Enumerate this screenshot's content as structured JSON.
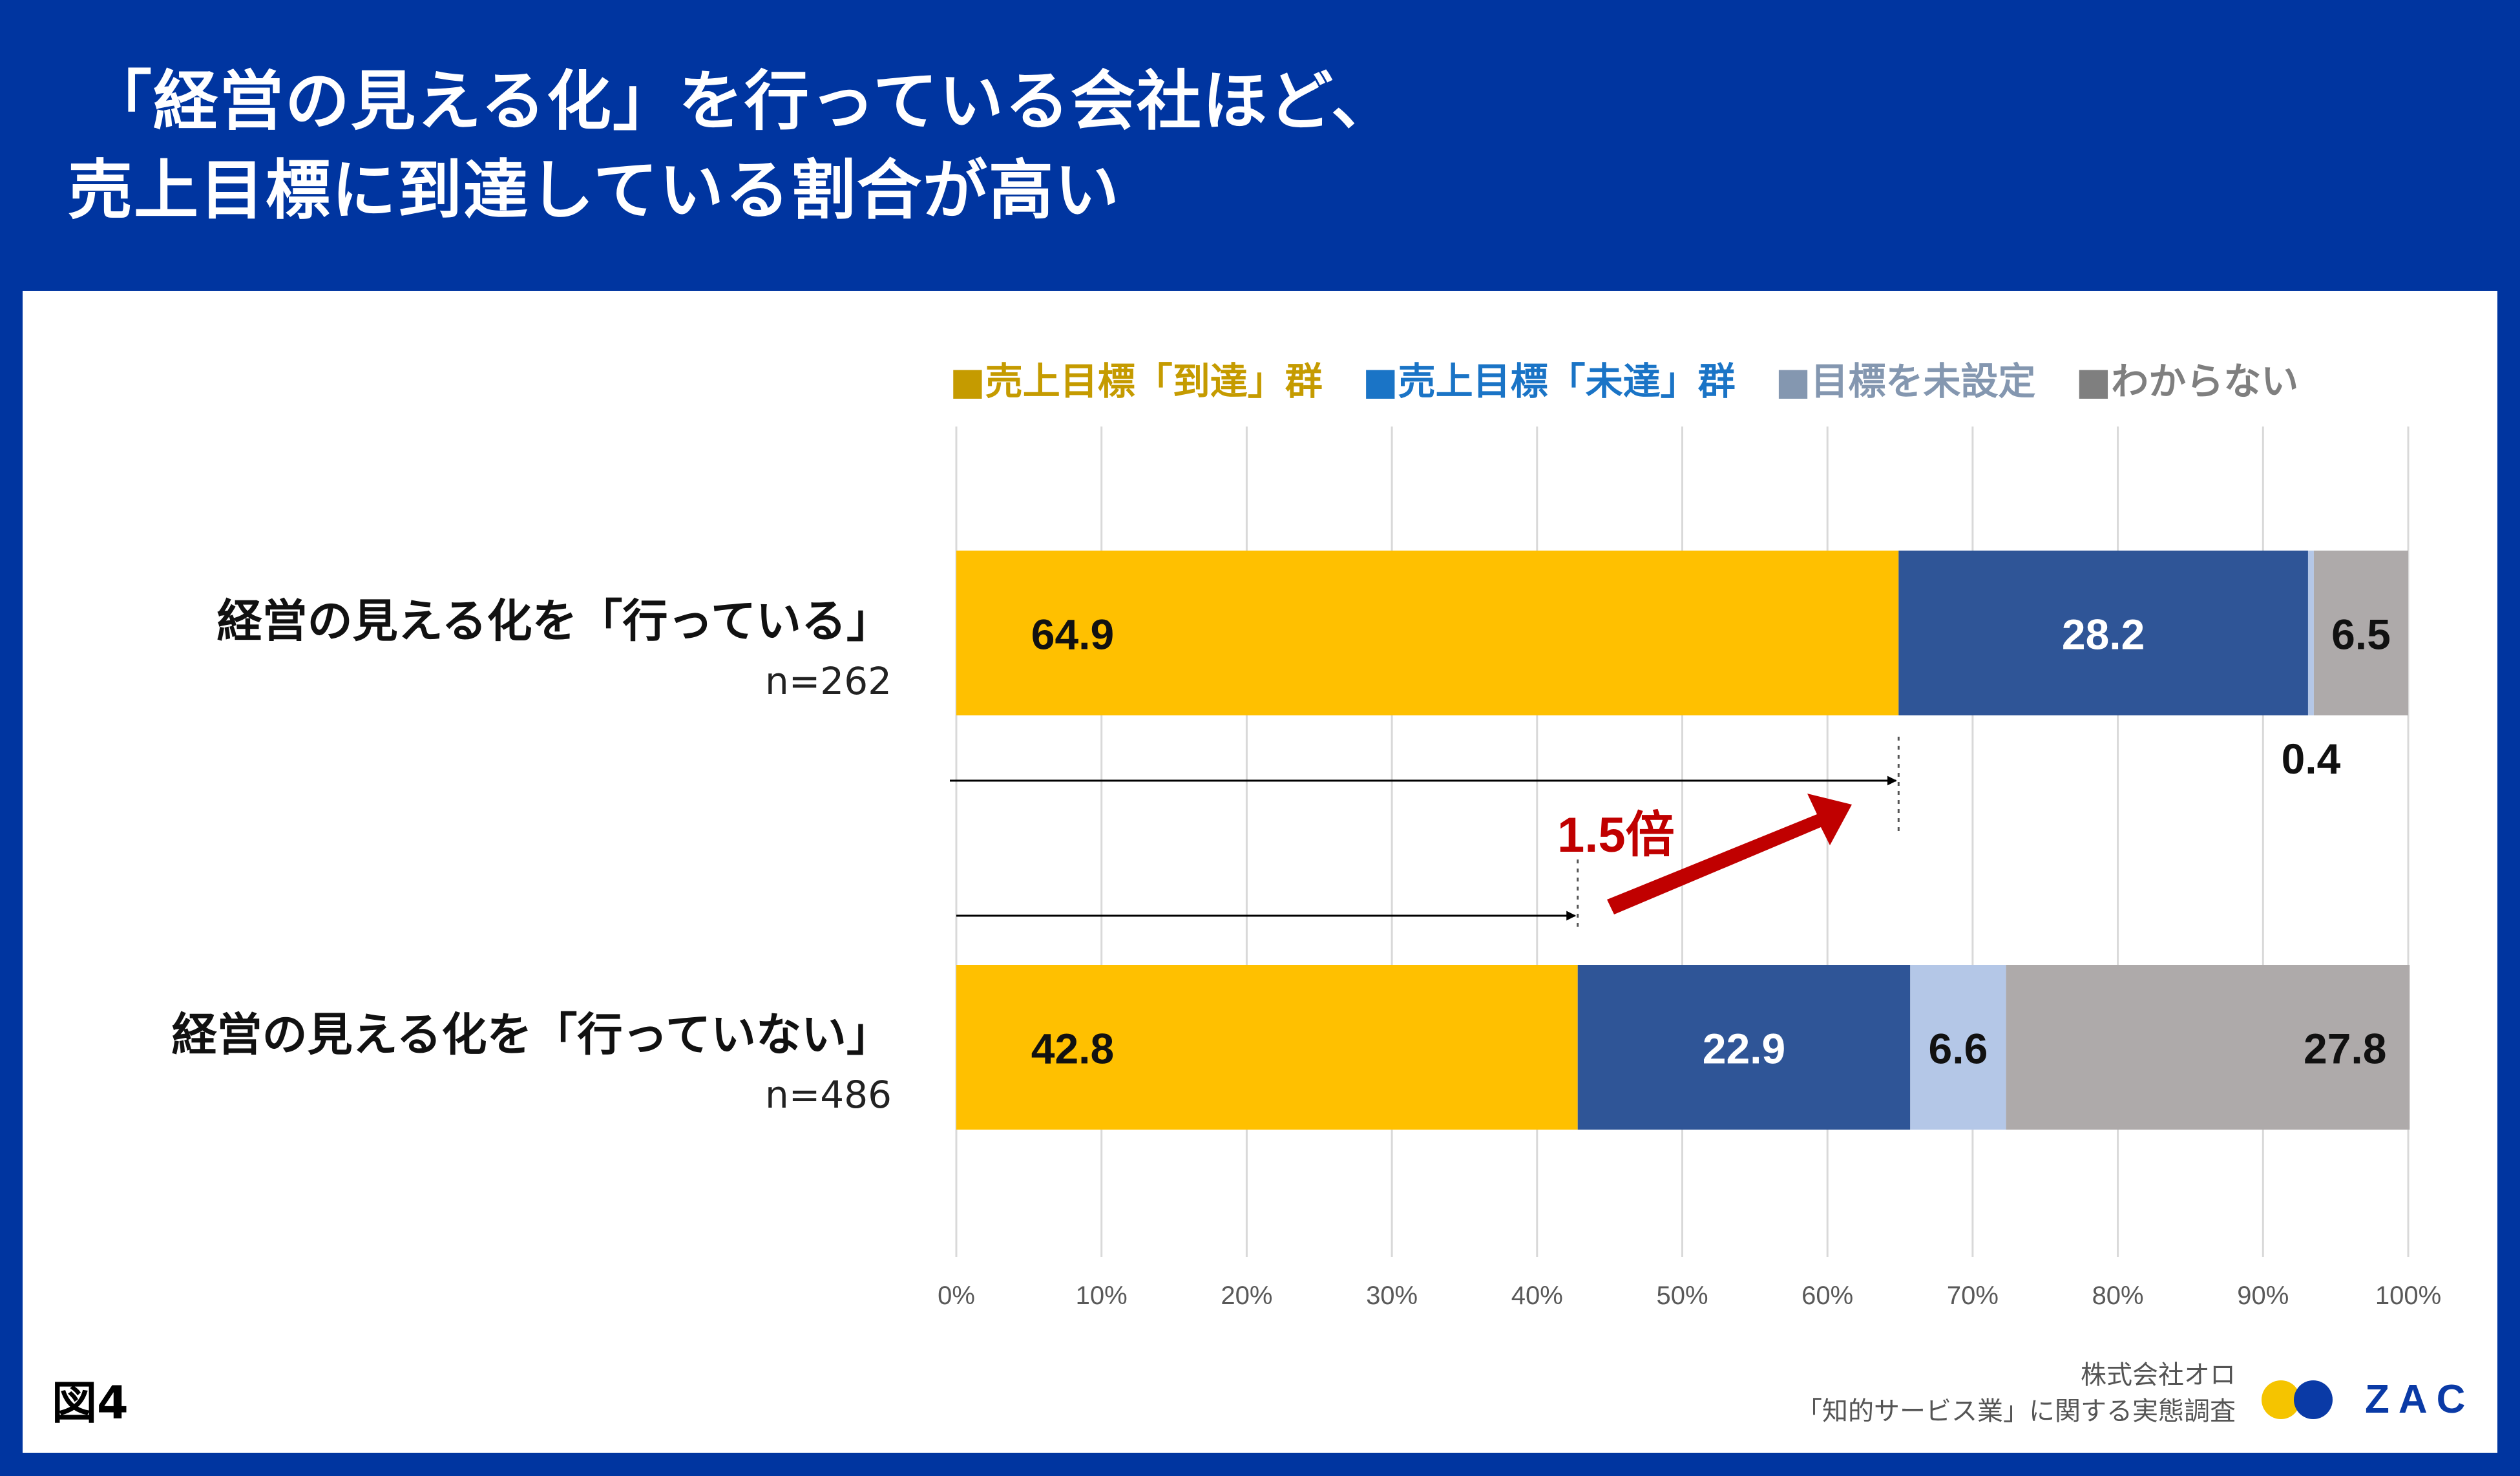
{
  "header": {
    "title_line1": "「経営の見える化」を行っている会社ほど、",
    "title_line2": "売上目標に到達している割合が高い"
  },
  "figure_label": "図4",
  "source": {
    "line1": "株式会社オロ",
    "line2": "「知的サービス業」に関する実態調査"
  },
  "logo": {
    "text": "ZAC"
  },
  "colors": {
    "background": "#0035a0",
    "reached": "#ffc000",
    "not_reached": "#2f5597",
    "not_set": "#b4c7e7",
    "unknown": "#aeaaaa",
    "emphasis": "#c00000"
  },
  "chart_data": {
    "type": "bar",
    "orientation": "horizontal-stacked",
    "xlim": [
      0,
      100
    ],
    "x_ticks": [
      "0%",
      "10%",
      "20%",
      "30%",
      "40%",
      "50%",
      "60%",
      "70%",
      "80%",
      "90%",
      "100%"
    ],
    "legend_position": "top-right",
    "series": [
      {
        "name": "売上目標「到達」群",
        "legend_label": "■売上目標「到達」群",
        "color": "#ffc000",
        "legend_color": "#c59b00",
        "label_color": "#111111"
      },
      {
        "name": "売上目標「未達」群",
        "legend_label": "■売上目標「未達」群",
        "color": "#2f5597",
        "legend_color": "#1a74c6",
        "label_color": "#ffffff"
      },
      {
        "name": "目標を未設定",
        "legend_label": "■目標を未設定",
        "color": "#b4c7e7",
        "legend_color": "#8497b0",
        "label_color": "#111111"
      },
      {
        "name": "わからない",
        "legend_label": "■わからない",
        "color": "#aeaaaa",
        "legend_color": "#7f7f7f",
        "label_color": "#111111"
      }
    ],
    "categories": [
      {
        "label": "経営の見える化を「行っている」",
        "n": "n=262",
        "values": [
          64.9,
          28.2,
          0.4,
          6.5
        ],
        "value_labels": [
          "64.9",
          "28.2",
          "0.4",
          "6.5"
        ]
      },
      {
        "label": "経営の見える化を「行っていない」",
        "n": "n=486",
        "values": [
          42.8,
          22.9,
          6.6,
          27.8
        ],
        "value_labels": [
          "42.8",
          "22.9",
          "6.6",
          "27.8"
        ]
      }
    ],
    "annotation": {
      "text": "1.5倍",
      "from_value": 42.8,
      "to_value": 64.9
    }
  }
}
